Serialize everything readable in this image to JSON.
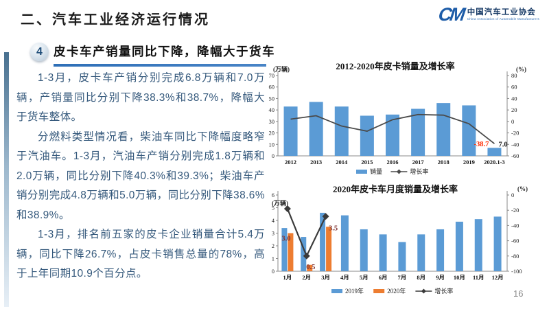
{
  "page": {
    "title": "二、汽车工业经济运行情况",
    "page_number": "16"
  },
  "logo": {
    "initials": "CM",
    "name_cn": "中国汽车工业协会",
    "name_en": "China Association of Automobile Manufacturers"
  },
  "section": {
    "badge": "4",
    "heading": "皮卡车产销量同比下降，降幅大于货车"
  },
  "body": {
    "paragraphs": [
      "1-3月，皮卡车产销分别完成6.8万辆和7.0万辆，产销量同比分别下降38.3%和38.7%，降幅大于货车整体。",
      "分燃料类型情况看，柴油车同比下降幅度略窄于汽油车。1-3月，汽油车产销分别完成1.8万辆和2.0万辆，同比分别下降40.3%和39.3%；柴油车产销分别完成4.8万辆和5.0万辆，同比分别下降38.6%和38.9%。",
      "1-3月，排名前五家的皮卡企业销量合计5.4万辆，同比下降26.7%，占皮卡销售总量的78%，高于上年同期10.9个百分点。"
    ]
  },
  "colors": {
    "bar_blue": "#5B9BD5",
    "bar_orange": "#ED7D31",
    "line_dark": "#454545",
    "annotation_red": "#FF2A00",
    "body_text": "#35597C",
    "heading_underline": "#2E6FB7"
  },
  "chart_data": [
    {
      "type": "bar+line",
      "title": "2012-2020年皮卡销量及增长率",
      "unit_left": "(万辆)",
      "unit_right": "(%)",
      "left_range": [
        0,
        70
      ],
      "left_ticks": [
        0,
        10,
        20,
        30,
        40,
        50,
        60,
        70
      ],
      "right_range": [
        -60,
        80
      ],
      "right_ticks": [
        -60,
        -40,
        -20,
        0,
        20,
        40,
        60,
        80
      ],
      "categories": [
        "2012",
        "2013",
        "2014",
        "2015",
        "2016",
        "2017",
        "2018",
        "2019",
        "2020.1-3"
      ],
      "series": [
        {
          "name": "销量",
          "type": "bar",
          "color": "#5B9BD5",
          "values": [
            43,
            47,
            43,
            35,
            36,
            41,
            46,
            44,
            7
          ]
        },
        {
          "name": "增长率",
          "type": "line",
          "color": "#4a4a4a",
          "marker": false,
          "values": [
            4,
            10,
            -8,
            -17,
            3,
            12,
            11,
            -4,
            -38.7
          ]
        }
      ],
      "annotations": [
        {
          "text": "-38.7",
          "cat": 8,
          "axis": "right",
          "v": -38.7,
          "color": "#FF2A00"
        },
        {
          "text": "7.0",
          "cat": 8,
          "axis": "left",
          "v": 7,
          "color": "#1a1a1a"
        }
      ],
      "legend_position": "bottom"
    },
    {
      "type": "bar+line",
      "title": "2020年皮卡车月度销量及增长率",
      "unit_left": "(万辆)",
      "unit_right": "(%)",
      "left_range": [
        0,
        6
      ],
      "left_ticks": [
        0,
        1,
        2,
        3,
        4,
        5,
        6
      ],
      "right_range": [
        -100,
        0
      ],
      "right_ticks": [
        0,
        -20,
        -40,
        -60,
        -80,
        -100
      ],
      "categories": [
        "1月",
        "2月",
        "3月",
        "4月",
        "5月",
        "6月",
        "7月",
        "8月",
        "9月",
        "10月",
        "11月",
        "12月"
      ],
      "series": [
        {
          "name": "2019年",
          "type": "bar",
          "color": "#5B9BD5",
          "values": [
            3.4,
            2.7,
            4.6,
            4.4,
            3.3,
            2.9,
            2.3,
            2.9,
            3.3,
            3.9,
            4.1,
            4.3
          ]
        },
        {
          "name": "2020年",
          "type": "bar",
          "color": "#ED7D31",
          "values": [
            3.0,
            0.5,
            3.5,
            null,
            null,
            null,
            null,
            null,
            null,
            null,
            null,
            null
          ]
        },
        {
          "name": "增长率",
          "type": "line",
          "color": "#3a3a3a",
          "marker": true,
          "values": [
            -18,
            -80,
            -28,
            null,
            null,
            null,
            null,
            null,
            null,
            null,
            null,
            null
          ]
        }
      ],
      "annotations": [
        {
          "text": "3.0",
          "cat": 0,
          "axis": "left",
          "v": 3.0,
          "color": "#7F3333"
        },
        {
          "text": "0.5",
          "cat": 1,
          "axis": "left",
          "v": 0.5,
          "color": "#7F3333"
        },
        {
          "text": "3.5",
          "cat": 2,
          "axis": "left",
          "v": 3.5,
          "color": "#7F3333"
        }
      ],
      "legend_position": "bottom"
    }
  ]
}
